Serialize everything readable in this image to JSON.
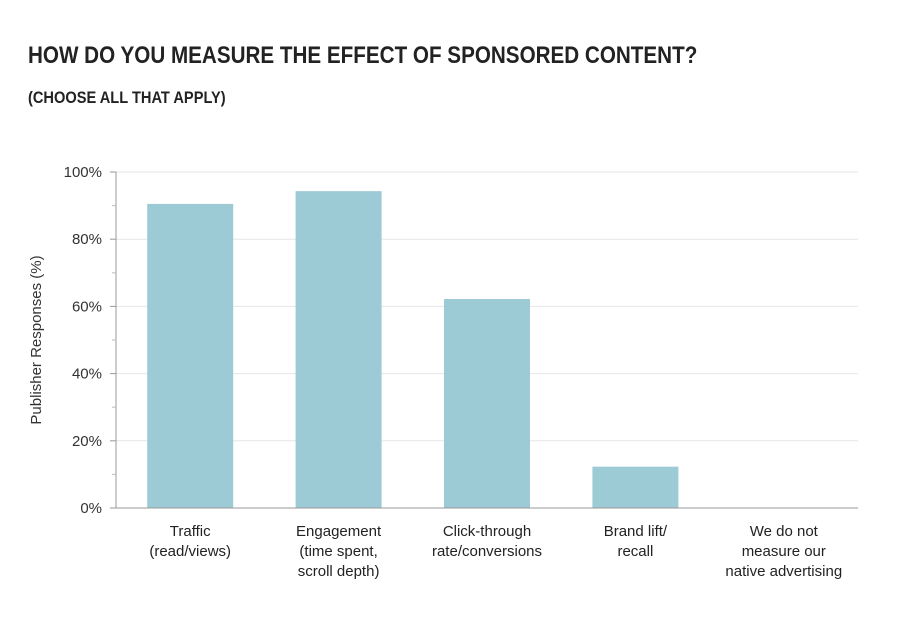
{
  "chart_data": {
    "type": "bar",
    "title": "HOW DO YOU MEASURE THE EFFECT OF SPONSORED CONTENT?",
    "subtitle": "(CHOOSE ALL THAT APPLY)",
    "ylabel": "Publisher Responses (%)",
    "xlabel": "",
    "ylim": [
      0,
      100
    ],
    "yticks": [
      "0%",
      "20%",
      "40%",
      "60%",
      "80%",
      "100%"
    ],
    "ytick_values": [
      0,
      20,
      40,
      60,
      80,
      100
    ],
    "categories": [
      [
        "Traffic",
        "(read/views)"
      ],
      [
        "Engagement",
        "(time spent,",
        "scroll depth)"
      ],
      [
        "Click-through",
        "rate/conversions"
      ],
      [
        "Brand lift/",
        "recall"
      ],
      [
        "We do not",
        "measure our",
        "native advertising"
      ]
    ],
    "values": [
      90.5,
      94.3,
      62.2,
      12.3,
      0
    ],
    "grid": true,
    "bar_color": "#9ccbd5"
  }
}
